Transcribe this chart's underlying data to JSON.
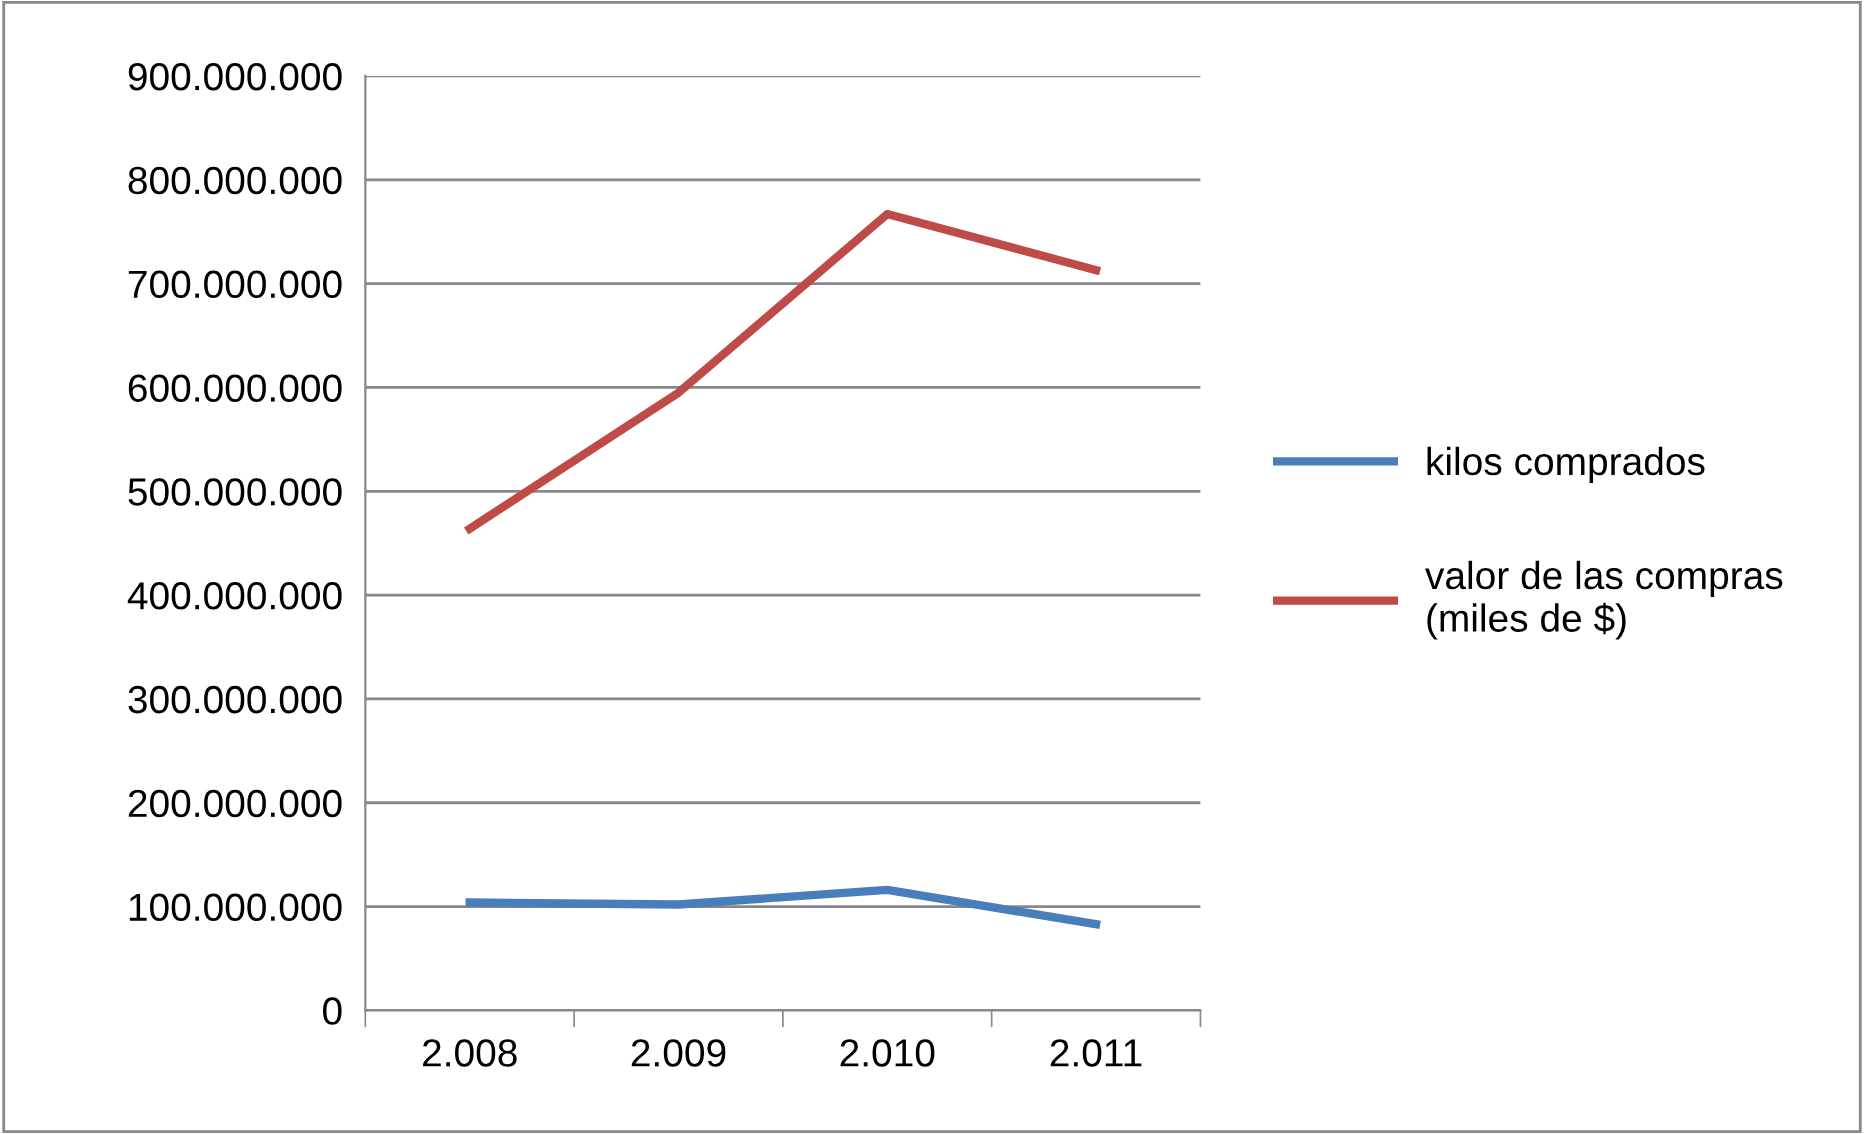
{
  "chart_data": {
    "type": "line",
    "categories": [
      "2.008",
      "2.009",
      "2.010",
      "2.011"
    ],
    "series": [
      {
        "name": "kilos comprados",
        "color": "#4a7ebb",
        "values": [
          104000000,
          102000000,
          116000000,
          83000000
        ]
      },
      {
        "name": "valor de las compras\n(miles de $)",
        "color": "#be4b48",
        "values": [
          464000000,
          595000000,
          767000000,
          713000000
        ]
      }
    ],
    "ylim": [
      0,
      900000000
    ],
    "yticks": [
      {
        "value": 0,
        "label": "0"
      },
      {
        "value": 100000000,
        "label": "100.000.000"
      },
      {
        "value": 200000000,
        "label": "200.000.000"
      },
      {
        "value": 300000000,
        "label": "300.000.000"
      },
      {
        "value": 400000000,
        "label": "400.000.000"
      },
      {
        "value": 500000000,
        "label": "500.000.000"
      },
      {
        "value": 600000000,
        "label": "600.000.000"
      },
      {
        "value": 700000000,
        "label": "700.000.000"
      },
      {
        "value": 800000000,
        "label": "800.000.000"
      },
      {
        "value": 900000000,
        "label": "900.000.000"
      }
    ],
    "grid": "y",
    "legend": "right",
    "marker": "none",
    "line_style": "solid"
  }
}
